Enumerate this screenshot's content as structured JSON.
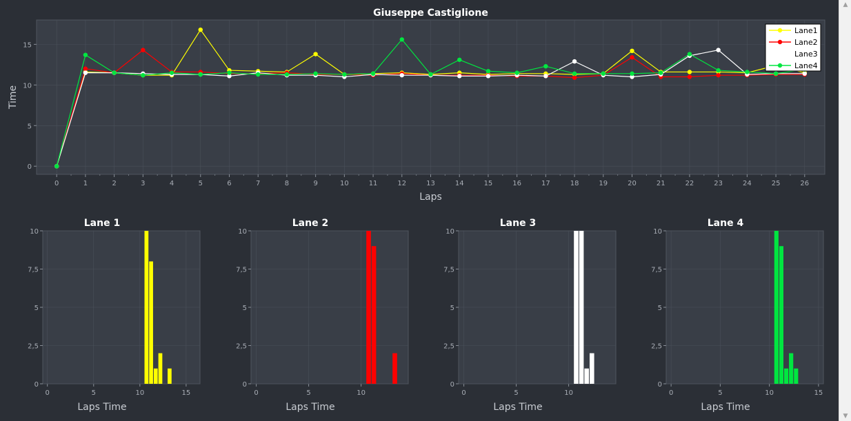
{
  "colors": {
    "lane1": "#ffff00",
    "lane2": "#ff0000",
    "lane3": "#ffffff",
    "lane4": "#00e640",
    "background": "#2b2f36",
    "plot_area": "#393e47",
    "grid": "#4a505a"
  },
  "scrollbar": {
    "up_icon": "chevron-up-icon",
    "down_icon": "chevron-down-icon"
  },
  "chart_data": [
    {
      "type": "line",
      "title": "Giuseppe Castiglione",
      "xlabel": "Laps",
      "ylabel": "Time",
      "xlim": [
        -0.7,
        26.7
      ],
      "ylim": [
        -1,
        18
      ],
      "x_ticks": [
        0,
        1,
        2,
        3,
        4,
        5,
        6,
        7,
        8,
        9,
        10,
        11,
        12,
        13,
        14,
        15,
        16,
        17,
        18,
        19,
        20,
        21,
        22,
        23,
        24,
        25,
        26
      ],
      "y_ticks": [
        0,
        5,
        10,
        15
      ],
      "y_tick_labels": [
        "0",
        "5",
        "10",
        "15"
      ],
      "grid": true,
      "legend": "top-right",
      "x": [
        0,
        1,
        2,
        3,
        4,
        5,
        6,
        7,
        8,
        9,
        10,
        11,
        12,
        13,
        14,
        15,
        16,
        17,
        18,
        19,
        20,
        21,
        22,
        23,
        24,
        25,
        26
      ],
      "series": [
        {
          "name": "Lane1",
          "color": "#ffff00",
          "values": [
            0,
            11.6,
            11.5,
            11.2,
            11.2,
            16.8,
            11.8,
            11.7,
            11.6,
            13.8,
            11.3,
            11.4,
            11.5,
            11.3,
            11.5,
            11.3,
            11.4,
            11.4,
            11.3,
            11.4,
            14.2,
            11.6,
            11.6,
            11.6,
            11.5,
            12.4,
            11.5
          ]
        },
        {
          "name": "Lane2",
          "color": "#ff0000",
          "values": [
            0,
            12.0,
            11.5,
            14.3,
            11.6,
            11.6,
            11.4,
            11.4,
            11.5,
            11.3,
            11.3,
            11.2,
            11.4,
            11.2,
            11.2,
            11.2,
            11.1,
            11.1,
            10.9,
            11.2,
            13.4,
            11.0,
            11.0,
            11.2,
            11.2,
            11.3,
            11.3
          ]
        },
        {
          "name": "Lane3",
          "color": "#ffffff",
          "values": [
            0,
            11.5,
            11.5,
            11.4,
            11.3,
            11.3,
            11.1,
            11.5,
            11.2,
            11.2,
            11.0,
            11.3,
            11.2,
            11.2,
            11.1,
            11.1,
            11.2,
            11.1,
            12.9,
            11.2,
            11.0,
            11.3,
            13.6,
            14.3,
            11.3,
            11.4,
            11.4
          ]
        },
        {
          "name": "Lane4",
          "color": "#00e640",
          "values": [
            0,
            13.7,
            11.5,
            11.2,
            11.5,
            11.3,
            11.5,
            11.3,
            11.3,
            11.4,
            11.3,
            11.4,
            15.6,
            11.3,
            13.1,
            11.7,
            11.5,
            12.3,
            11.4,
            11.4,
            11.4,
            11.5,
            13.8,
            11.8,
            11.6,
            11.4,
            11.9
          ]
        }
      ]
    },
    {
      "type": "bar",
      "title": "Lane 1",
      "xlabel": "Laps Time",
      "ylabel": "",
      "color": "#ffff00",
      "xlim": [
        -0.5,
        16.5
      ],
      "ylim": [
        0,
        10
      ],
      "x_ticks": [
        0,
        5,
        10,
        15
      ],
      "x_tick_labels": [
        "0",
        "5",
        "10",
        "15"
      ],
      "y_ticks": [
        0,
        2.5,
        5,
        7.5,
        10
      ],
      "y_tick_labels": [
        "0",
        "2,5",
        "5",
        "7,5",
        "10"
      ],
      "bins": [
        {
          "x0": 10.5,
          "x1": 11,
          "value": 10
        },
        {
          "x0": 11,
          "x1": 11.5,
          "value": 8
        },
        {
          "x0": 11.5,
          "x1": 12,
          "value": 1
        },
        {
          "x0": 12,
          "x1": 12.5,
          "value": 2
        },
        {
          "x0": 13,
          "x1": 13.5,
          "value": 1
        }
      ]
    },
    {
      "type": "bar",
      "title": "Lane 2",
      "xlabel": "Laps Time",
      "ylabel": "",
      "color": "#ff0000",
      "xlim": [
        -0.5,
        14.5
      ],
      "ylim": [
        0,
        10
      ],
      "x_ticks": [
        0,
        5,
        10
      ],
      "x_tick_labels": [
        "0",
        "5",
        "10"
      ],
      "y_ticks": [
        0,
        2.5,
        5,
        7.5,
        10
      ],
      "y_tick_labels": [
        "0",
        "2,5",
        "5",
        "7,5",
        "10"
      ],
      "bins": [
        {
          "x0": 10.5,
          "x1": 11,
          "value": 10
        },
        {
          "x0": 11,
          "x1": 11.5,
          "value": 9
        },
        {
          "x0": 13,
          "x1": 13.5,
          "value": 2
        }
      ]
    },
    {
      "type": "bar",
      "title": "Lane 3",
      "xlabel": "Laps Time",
      "ylabel": "",
      "color": "#ffffff",
      "xlim": [
        -0.5,
        14.5
      ],
      "ylim": [
        0,
        10
      ],
      "x_ticks": [
        0,
        5,
        10
      ],
      "x_tick_labels": [
        "0",
        "5",
        "10"
      ],
      "y_ticks": [
        0,
        2.5,
        5,
        7.5,
        10
      ],
      "y_tick_labels": [
        "0",
        "2,5",
        "5",
        "7,5",
        "10"
      ],
      "bins": [
        {
          "x0": 10.5,
          "x1": 11,
          "value": 10
        },
        {
          "x0": 11,
          "x1": 11.5,
          "value": 10
        },
        {
          "x0": 11.5,
          "x1": 12,
          "value": 1
        },
        {
          "x0": 12,
          "x1": 12.5,
          "value": 2
        }
      ]
    },
    {
      "type": "bar",
      "title": "Lane 4",
      "xlabel": "Laps Time",
      "ylabel": "",
      "color": "#00e640",
      "xlim": [
        -0.5,
        15.5
      ],
      "ylim": [
        0,
        10
      ],
      "x_ticks": [
        0,
        5,
        10,
        15
      ],
      "x_tick_labels": [
        "0",
        "5",
        "10",
        "15"
      ],
      "y_ticks": [
        0,
        2.5,
        5,
        7.5,
        10
      ],
      "y_tick_labels": [
        "0",
        "2,5",
        "5",
        "7,5",
        "10"
      ],
      "bins": [
        {
          "x0": 10.5,
          "x1": 11,
          "value": 10
        },
        {
          "x0": 11,
          "x1": 11.5,
          "value": 9
        },
        {
          "x0": 11.5,
          "x1": 12,
          "value": 1
        },
        {
          "x0": 12,
          "x1": 12.5,
          "value": 2
        },
        {
          "x0": 12.5,
          "x1": 13,
          "value": 1
        }
      ]
    }
  ]
}
